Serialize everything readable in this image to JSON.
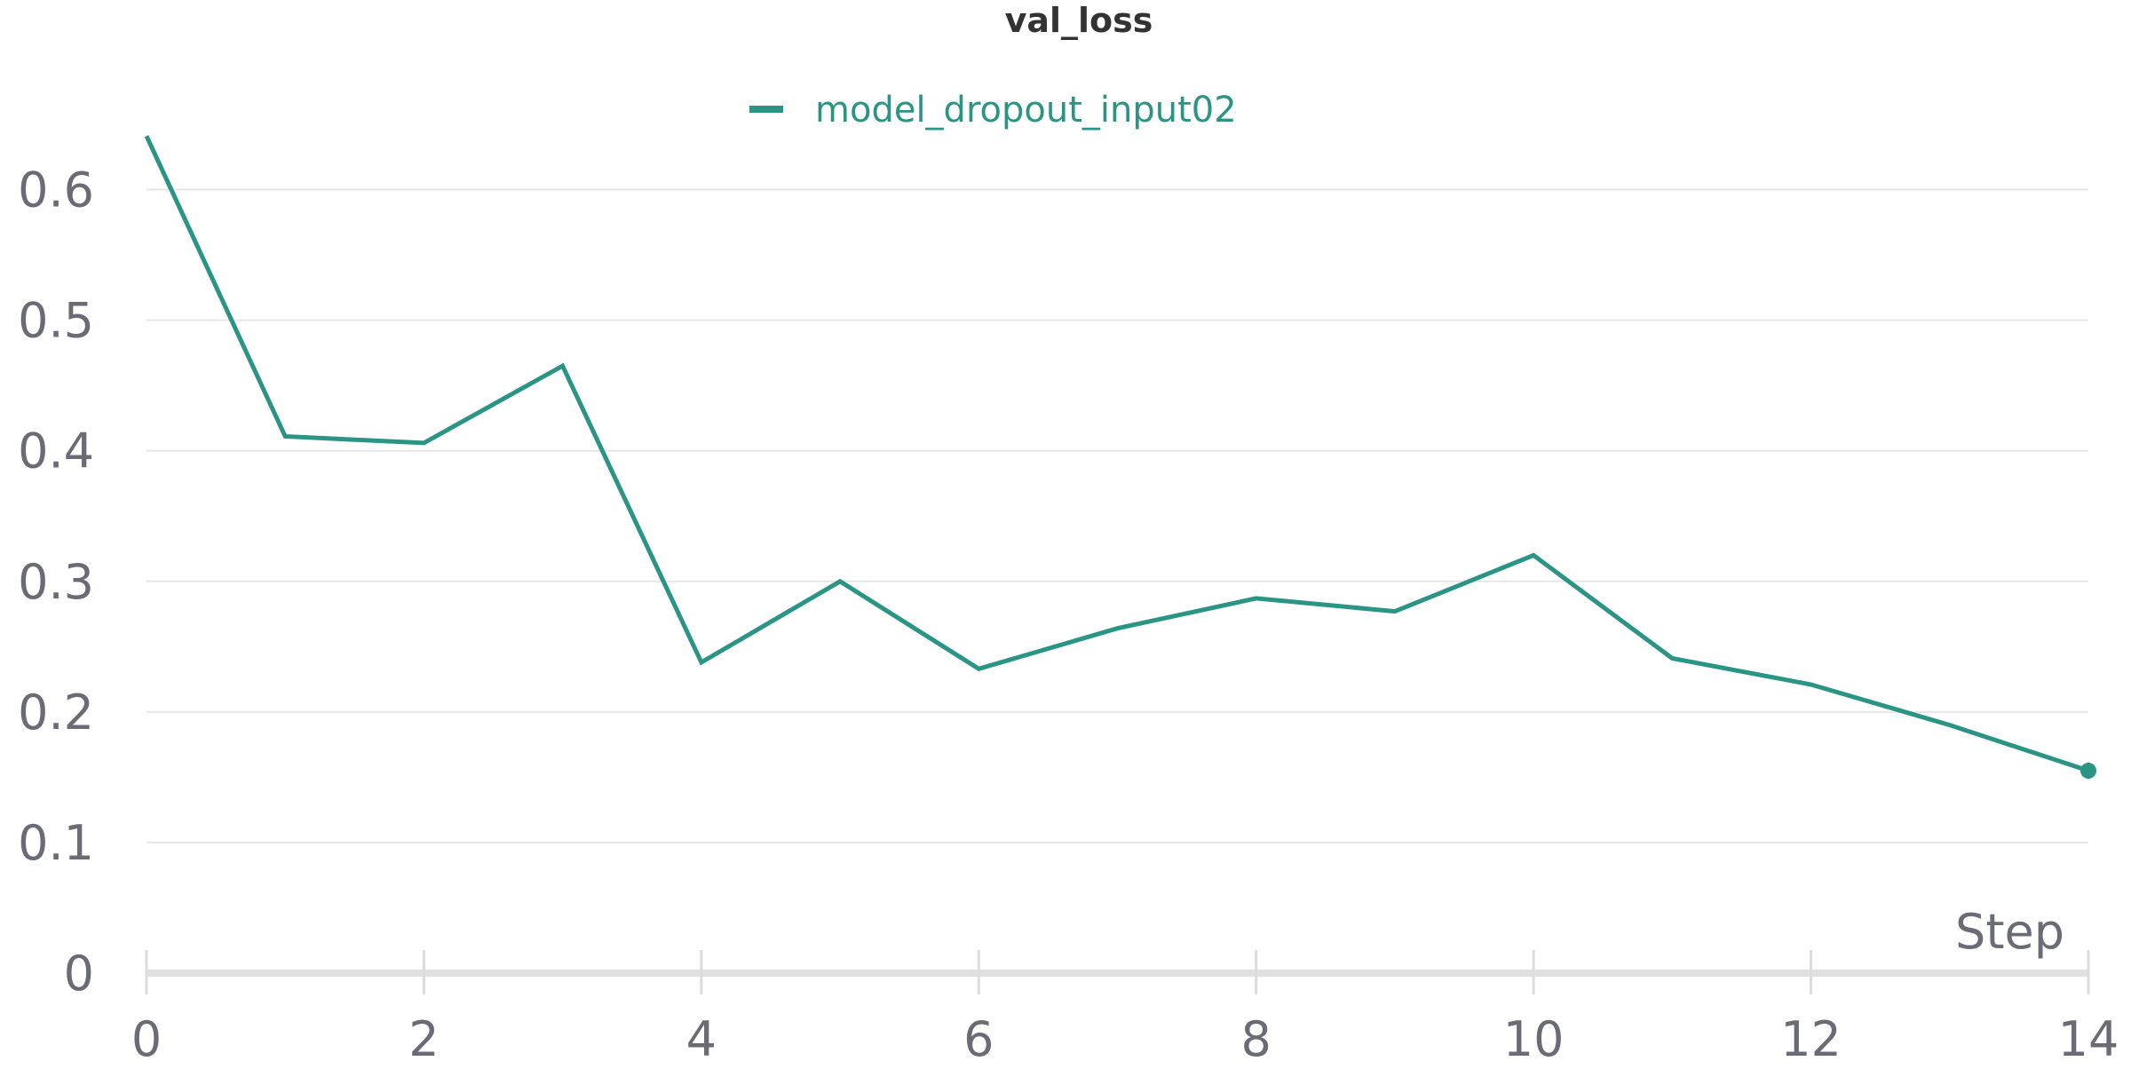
{
  "chart_data": {
    "type": "line",
    "title": "val_loss",
    "xlabel": "Step",
    "ylabel": "",
    "xlim": [
      0,
      14
    ],
    "ylim": [
      0,
      0.65
    ],
    "x_ticks": [
      0,
      2,
      4,
      6,
      8,
      10,
      12,
      14
    ],
    "y_ticks": [
      0,
      0.1,
      0.2,
      0.3,
      0.4,
      0.5,
      0.6
    ],
    "grid": true,
    "legend_position": "top-center",
    "series": [
      {
        "name": "model_dropout_input02",
        "color": "#2a9485",
        "x": [
          0,
          1,
          2,
          3,
          4,
          5,
          6,
          7,
          8,
          9,
          10,
          11,
          12,
          13,
          14
        ],
        "y": [
          0.641,
          0.411,
          0.406,
          0.465,
          0.238,
          0.3,
          0.233,
          0.264,
          0.287,
          0.277,
          0.32,
          0.241,
          0.221,
          0.19,
          0.155
        ],
        "end_marker": true
      }
    ]
  }
}
